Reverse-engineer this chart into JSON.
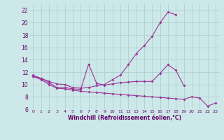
{
  "xlabel": "Windchill (Refroidissement éolien,°C)",
  "bg_color": "#cce8e8",
  "grid_color": "#aacccc",
  "line_color": "#993399",
  "xlim": [
    -0.5,
    23.5
  ],
  "ylim": [
    6,
    23
  ],
  "xticks": [
    0,
    1,
    2,
    3,
    4,
    5,
    6,
    7,
    8,
    9,
    10,
    11,
    12,
    13,
    14,
    15,
    16,
    17,
    18,
    19,
    20,
    21,
    22,
    23
  ],
  "yticks": [
    6,
    8,
    10,
    12,
    14,
    16,
    18,
    20,
    22
  ],
  "line1_x": [
    0,
    1,
    2,
    3,
    4,
    5,
    6,
    7,
    8,
    9,
    10,
    11,
    12,
    13,
    14,
    15,
    16,
    17,
    18
  ],
  "line1_y": [
    11.5,
    11.0,
    10.5,
    10.1,
    10.0,
    9.5,
    9.4,
    9.5,
    9.8,
    10.0,
    10.8,
    11.5,
    13.2,
    15.0,
    16.3,
    17.8,
    20.0,
    21.7,
    21.3
  ],
  "line2_x": [
    0,
    1,
    2,
    3,
    4,
    5,
    6,
    7,
    8,
    9,
    10,
    11,
    12,
    13,
    14,
    15,
    16,
    17,
    18,
    19
  ],
  "line2_y": [
    11.3,
    11.0,
    10.3,
    9.5,
    9.5,
    9.3,
    9.2,
    13.3,
    10.2,
    9.9,
    10.1,
    10.3,
    10.4,
    10.5,
    10.5,
    10.5,
    11.8,
    13.2,
    12.3,
    9.8
  ],
  "line3_x": [
    0,
    1,
    2,
    3,
    4,
    5,
    6,
    7,
    8,
    9,
    10,
    11,
    12,
    13,
    14,
    15,
    16,
    17,
    18,
    19,
    20,
    21,
    22,
    23
  ],
  "line3_y": [
    11.3,
    10.8,
    10.0,
    9.4,
    9.3,
    9.1,
    8.9,
    8.8,
    8.7,
    8.6,
    8.5,
    8.4,
    8.3,
    8.2,
    8.1,
    8.0,
    7.9,
    7.8,
    7.7,
    7.6,
    8.0,
    7.8,
    6.5,
    7.0
  ]
}
